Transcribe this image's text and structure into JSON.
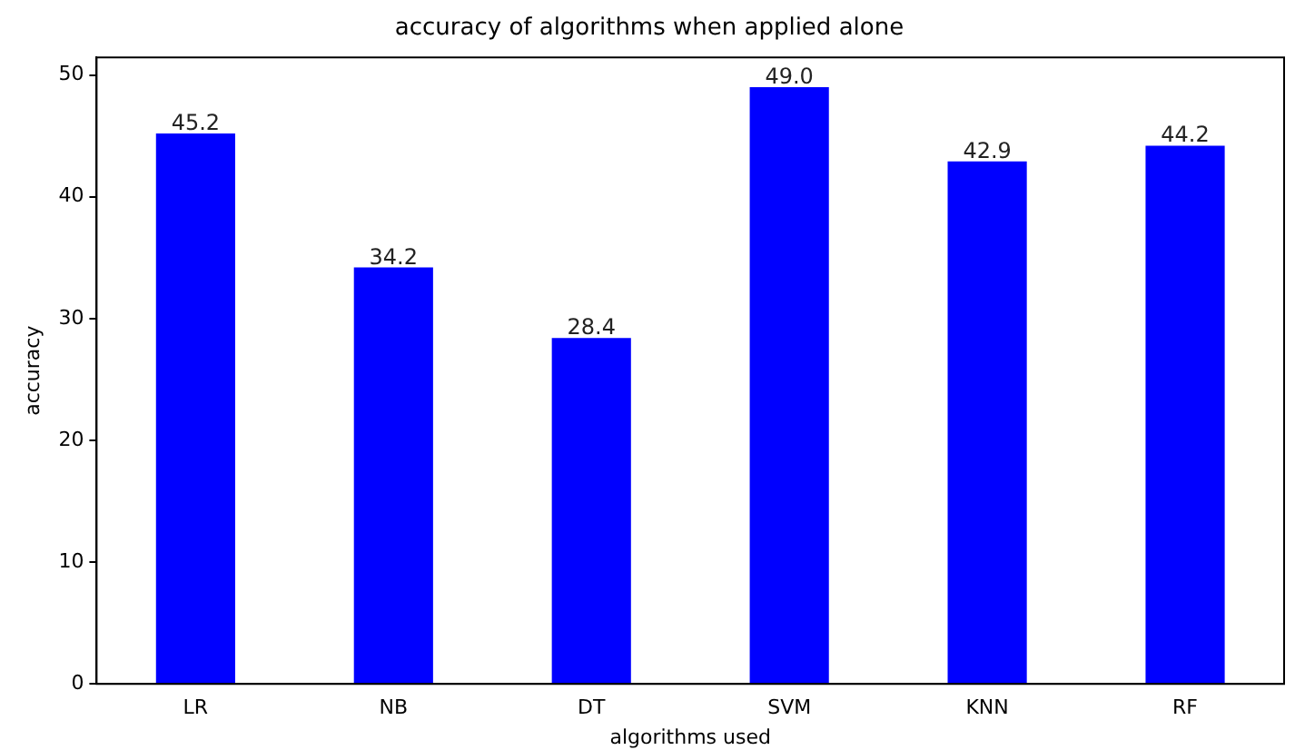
{
  "chart_data": {
    "type": "bar",
    "title": "accuracy of algorithms when applied alone",
    "xlabel": "algorithms used",
    "ylabel": "accuracy",
    "categories": [
      "LR",
      "NB",
      "DT",
      "SVM",
      "KNN",
      "RF"
    ],
    "values": [
      45.2,
      34.2,
      28.4,
      49.0,
      42.9,
      44.2
    ],
    "value_labels": [
      "45.2",
      "34.2",
      "28.4",
      "49.0",
      "42.9",
      "44.2"
    ],
    "color": "#0000ff",
    "ylim": [
      0,
      51.45
    ],
    "yticks": [
      0,
      10,
      20,
      30,
      40,
      50
    ],
    "grid": false,
    "legend": false
  }
}
